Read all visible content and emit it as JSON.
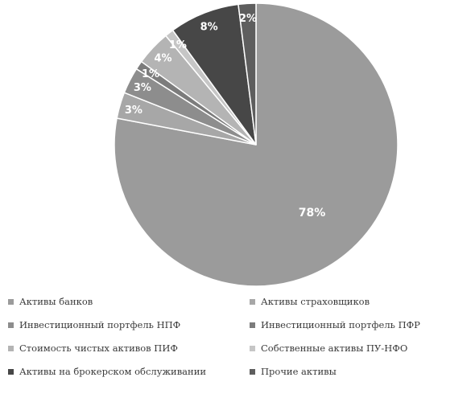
{
  "chart_data": {
    "type": "pie",
    "title": "",
    "slices": [
      {
        "label": "Активы банков",
        "value": 78,
        "value_label": "78%",
        "color": "#9b9b9b"
      },
      {
        "label": "Активы страховщиков",
        "value": 3,
        "value_label": "3%",
        "color": "#a7a7a7"
      },
      {
        "label": "Инвестиционный портфель НПФ",
        "value": 3,
        "value_label": "3%",
        "color": "#8d8d8d"
      },
      {
        "label": "Инвестиционный портфель ПФР",
        "value": 1,
        "value_label": "1%",
        "color": "#7c7c7c"
      },
      {
        "label": "Стоимость чистых активов ПИФ",
        "value": 4,
        "value_label": "4%",
        "color": "#b4b4b4"
      },
      {
        "label": "Собственные активы ПУ-НФО",
        "value": 1,
        "value_label": "1%",
        "color": "#c6c6c6"
      },
      {
        "label": "Активы на брокерском обслуживании",
        "value": 8,
        "value_label": "8%",
        "color": "#474747"
      },
      {
        "label": "Прочие активы",
        "value": 2,
        "value_label": "2%",
        "color": "#5e5e5e"
      }
    ],
    "legend_position": "bottom"
  }
}
